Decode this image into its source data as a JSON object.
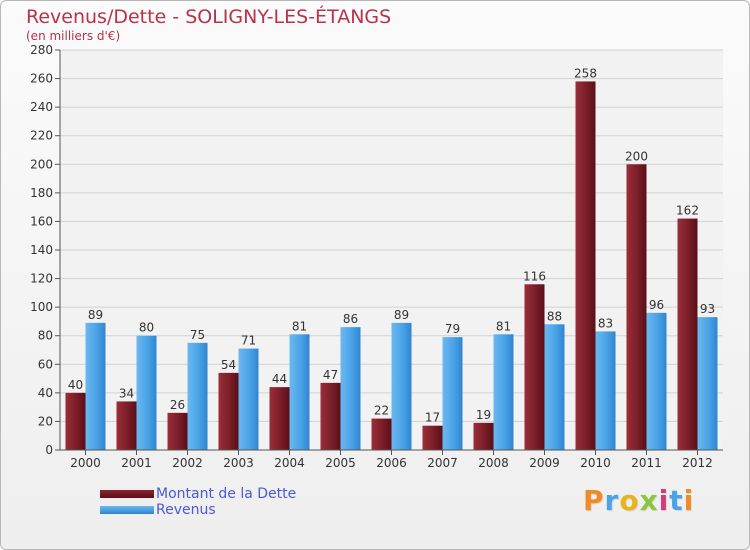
{
  "header": {
    "title": "Revenus/Dette - SOLIGNY-LES-ÉTANGS",
    "subtitle": "(en milliers d'€)"
  },
  "legend": {
    "debt_label": "Montant de la Dette",
    "revenue_label": "Revenus"
  },
  "logo": {
    "text": "Proxiti"
  },
  "colors": {
    "debt": "#7a1e28",
    "revenue": "#4aa3e6",
    "title": "#b8324a",
    "legend_text": "#4a5ad6"
  },
  "chart_data": {
    "type": "bar",
    "title": "Revenus/Dette - SOLIGNY-LES-ÉTANGS",
    "ylabel": "(en milliers d'€)",
    "categories": [
      "2000",
      "2001",
      "2002",
      "2003",
      "2004",
      "2005",
      "2006",
      "2007",
      "2008",
      "2009",
      "2010",
      "2011",
      "2012"
    ],
    "series": [
      {
        "name": "Montant de la Dette",
        "values": [
          40,
          34,
          26,
          54,
          44,
          47,
          22,
          17,
          19,
          116,
          258,
          200,
          162
        ]
      },
      {
        "name": "Revenus",
        "values": [
          89,
          80,
          75,
          71,
          81,
          86,
          89,
          79,
          81,
          88,
          83,
          96,
          93
        ]
      }
    ],
    "ylim": [
      0,
      280
    ],
    "yticks": [
      0,
      20,
      40,
      60,
      80,
      100,
      120,
      140,
      160,
      180,
      200,
      220,
      240,
      260,
      280
    ],
    "grid": true,
    "legend_position": "bottom-left"
  }
}
